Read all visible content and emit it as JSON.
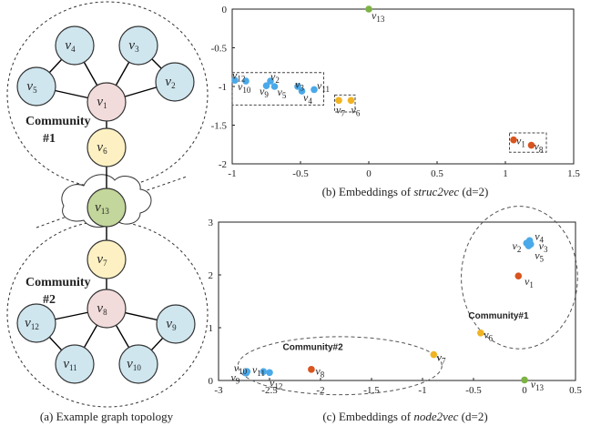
{
  "topology": {
    "caption": "(a) Example graph topology",
    "community1_label": "Community",
    "community1_num": "#1",
    "community2_label": "Community",
    "community2_num": "#2",
    "colors": {
      "blue": "#cfe6ef",
      "pink": "#f2dcdb",
      "yellow": "#fdf1c3",
      "green": "#c3d69b",
      "edge": "#000000"
    },
    "nodes": [
      {
        "id": "v4",
        "label": "v",
        "sub": "4",
        "color": "blue"
      },
      {
        "id": "v3",
        "label": "v",
        "sub": "3",
        "color": "blue"
      },
      {
        "id": "v5",
        "label": "v",
        "sub": "5",
        "color": "blue"
      },
      {
        "id": "v2",
        "label": "v",
        "sub": "2",
        "color": "blue"
      },
      {
        "id": "v1",
        "label": "v",
        "sub": "1",
        "color": "pink"
      },
      {
        "id": "v6",
        "label": "v",
        "sub": "6",
        "color": "yellow"
      },
      {
        "id": "v13",
        "label": "v",
        "sub": "13",
        "color": "green"
      },
      {
        "id": "v7",
        "label": "v",
        "sub": "7",
        "color": "yellow"
      },
      {
        "id": "v8",
        "label": "v",
        "sub": "8",
        "color": "pink"
      },
      {
        "id": "v12",
        "label": "v",
        "sub": "12",
        "color": "blue"
      },
      {
        "id": "v9",
        "label": "v",
        "sub": "9",
        "color": "blue"
      },
      {
        "id": "v11",
        "label": "v",
        "sub": "11",
        "color": "blue"
      },
      {
        "id": "v10",
        "label": "v",
        "sub": "10",
        "color": "blue"
      }
    ],
    "edges": [
      [
        "v1",
        "v4"
      ],
      [
        "v1",
        "v3"
      ],
      [
        "v1",
        "v5"
      ],
      [
        "v1",
        "v2"
      ],
      [
        "v4",
        "v5"
      ],
      [
        "v3",
        "v2"
      ],
      [
        "v1",
        "v6"
      ],
      [
        "v6",
        "v13"
      ],
      [
        "v13",
        "v7"
      ],
      [
        "v7",
        "v8"
      ],
      [
        "v8",
        "v12"
      ],
      [
        "v8",
        "v9"
      ],
      [
        "v8",
        "v11"
      ],
      [
        "v8",
        "v10"
      ],
      [
        "v12",
        "v11"
      ],
      [
        "v9",
        "v10"
      ]
    ]
  },
  "chart_data": [
    {
      "type": "scatter",
      "caption_prefix": "(b) Embeddings of ",
      "caption_method": "struc2vec",
      "caption_suffix": " (d=2)",
      "xlim": [
        -1,
        1.5
      ],
      "ylim": [
        -2,
        0
      ],
      "xticks": [
        "-1",
        "-0.5",
        "0",
        "0.5",
        "1",
        "1.5"
      ],
      "yticks": [
        "0",
        "-0.5",
        "-1",
        "-1.5",
        "-2"
      ],
      "points": [
        {
          "name": "v13",
          "x": 0.0,
          "y": 0.0,
          "color": "#7cb342"
        },
        {
          "name": "v12",
          "x": -0.98,
          "y": -0.92,
          "color": "#4aa9e9"
        },
        {
          "name": "v10",
          "x": -0.9,
          "y": -0.93,
          "color": "#4aa9e9"
        },
        {
          "name": "v2",
          "x": -0.72,
          "y": -0.93,
          "color": "#4aa9e9"
        },
        {
          "name": "v9",
          "x": -0.75,
          "y": -0.99,
          "color": "#4aa9e9"
        },
        {
          "name": "v5",
          "x": -0.69,
          "y": -1.0,
          "color": "#4aa9e9"
        },
        {
          "name": "v3",
          "x": -0.52,
          "y": -1.0,
          "color": "#4aa9e9"
        },
        {
          "name": "v4",
          "x": -0.49,
          "y": -1.06,
          "color": "#4aa9e9"
        },
        {
          "name": "v11",
          "x": -0.4,
          "y": -1.04,
          "color": "#4aa9e9"
        },
        {
          "name": "v7",
          "x": -0.22,
          "y": -1.18,
          "color": "#f0b323"
        },
        {
          "name": "v6",
          "x": -0.13,
          "y": -1.18,
          "color": "#f0b323"
        },
        {
          "name": "v1",
          "x": 1.06,
          "y": -1.69,
          "color": "#d9541e"
        },
        {
          "name": "v8",
          "x": 1.19,
          "y": -1.76,
          "color": "#d9541e"
        }
      ],
      "labels": [
        {
          "text": "v",
          "sub": "13",
          "x": 0.02,
          "y": -0.08
        },
        {
          "text": "v",
          "sub": "12",
          "x": -1.0,
          "y": -0.85
        },
        {
          "text": "v",
          "sub": "10",
          "x": -0.96,
          "y": -1.0
        },
        {
          "text": "v",
          "sub": "2",
          "x": -0.72,
          "y": -0.87
        },
        {
          "text": "v",
          "sub": "9",
          "x": -0.8,
          "y": -1.06
        },
        {
          "text": "v",
          "sub": "5",
          "x": -0.67,
          "y": -1.07
        },
        {
          "text": "v",
          "sub": "3",
          "x": -0.54,
          "y": -0.97
        },
        {
          "text": "v",
          "sub": "4",
          "x": -0.48,
          "y": -1.14
        },
        {
          "text": "v",
          "sub": "11",
          "x": -0.38,
          "y": -0.99
        },
        {
          "text": "v",
          "sub": "7",
          "x": -0.24,
          "y": -1.3
        },
        {
          "text": "v",
          "sub": "6",
          "x": -0.13,
          "y": -1.3
        },
        {
          "text": "v",
          "sub": "1",
          "x": 1.08,
          "y": -1.7
        },
        {
          "text": "v",
          "sub": "8",
          "x": 1.21,
          "y": -1.77
        }
      ],
      "boxes": [
        {
          "x0": -1.0,
          "x1": -0.33,
          "y0": -0.82,
          "y1": -1.24
        },
        {
          "x0": -0.25,
          "x1": -0.1,
          "y0": -1.11,
          "y1": -1.33
        },
        {
          "x0": 1.03,
          "x1": 1.3,
          "y0": -1.6,
          "y1": -1.85
        }
      ]
    },
    {
      "type": "scatter",
      "caption_prefix": "(c) Embeddings of ",
      "caption_method": "node2vec",
      "caption_suffix": " (d=2)",
      "xlim": [
        -3,
        0.5
      ],
      "ylim": [
        0,
        3
      ],
      "xticks": [
        "-3",
        "-2.5",
        "-2",
        "-1.5",
        "-1",
        "-0.5",
        "0",
        "0.5"
      ],
      "yticks": [
        "3",
        "2",
        "1",
        "0"
      ],
      "community1_label": "Community#1",
      "community2_label": "Community#2",
      "points": [
        {
          "name": "v2",
          "x": 0.02,
          "y": 2.6,
          "color": "#4aa9e9"
        },
        {
          "name": "v4",
          "x": 0.05,
          "y": 2.65,
          "color": "#4aa9e9"
        },
        {
          "name": "v3",
          "x": 0.06,
          "y": 2.58,
          "color": "#4aa9e9"
        },
        {
          "name": "v5",
          "x": 0.04,
          "y": 2.55,
          "color": "#4aa9e9"
        },
        {
          "name": "v1",
          "x": -0.06,
          "y": 1.98,
          "color": "#d9541e"
        },
        {
          "name": "v6",
          "x": -0.43,
          "y": 0.9,
          "color": "#f0b323"
        },
        {
          "name": "v7",
          "x": -0.89,
          "y": 0.49,
          "color": "#f0b323"
        },
        {
          "name": "v8",
          "x": -2.09,
          "y": 0.21,
          "color": "#d9541e"
        },
        {
          "name": "v9",
          "x": -2.73,
          "y": 0.14,
          "color": "#4aa9e9"
        },
        {
          "name": "v10",
          "x": -2.72,
          "y": 0.17,
          "color": "#4aa9e9"
        },
        {
          "name": "v11",
          "x": -2.56,
          "y": 0.17,
          "color": "#4aa9e9"
        },
        {
          "name": "v12",
          "x": -2.5,
          "y": 0.15,
          "color": "#4aa9e9"
        },
        {
          "name": "v13",
          "x": 0.0,
          "y": 0.01,
          "color": "#7cb342"
        }
      ],
      "labels": [
        {
          "text": "v",
          "sub": "2",
          "x": -0.12,
          "y": 2.55
        },
        {
          "text": "v",
          "sub": "4",
          "x": 0.1,
          "y": 2.73
        },
        {
          "text": "v",
          "sub": "3",
          "x": 0.14,
          "y": 2.55
        },
        {
          "text": "v",
          "sub": "5",
          "x": 0.1,
          "y": 2.37
        },
        {
          "text": "v",
          "sub": "1",
          "x": 0.0,
          "y": 1.88
        },
        {
          "text": "v",
          "sub": "6",
          "x": -0.4,
          "y": 0.87
        },
        {
          "text": "v",
          "sub": "7",
          "x": -0.86,
          "y": 0.44
        },
        {
          "text": "v",
          "sub": "8",
          "x": -2.05,
          "y": 0.18
        },
        {
          "text": "v",
          "sub": "9",
          "x": -2.88,
          "y": 0.06
        },
        {
          "text": "v",
          "sub": "10",
          "x": -2.85,
          "y": 0.24
        },
        {
          "text": "v",
          "sub": "11",
          "x": -2.67,
          "y": 0.21
        },
        {
          "text": "v",
          "sub": "12",
          "x": -2.5,
          "y": -0.04
        },
        {
          "text": "v",
          "sub": "13",
          "x": 0.06,
          "y": -0.07
        }
      ],
      "ellipses": [
        {
          "cx": -0.05,
          "cy": 1.95,
          "rx": 0.57,
          "ry": 1.35,
          "label_x": -0.55,
          "label_y": 1.17
        },
        {
          "cx": -1.81,
          "cy": 0.28,
          "rx": 1.0,
          "ry": 0.55,
          "label_x": -2.37,
          "label_y": 0.58
        }
      ]
    }
  ]
}
